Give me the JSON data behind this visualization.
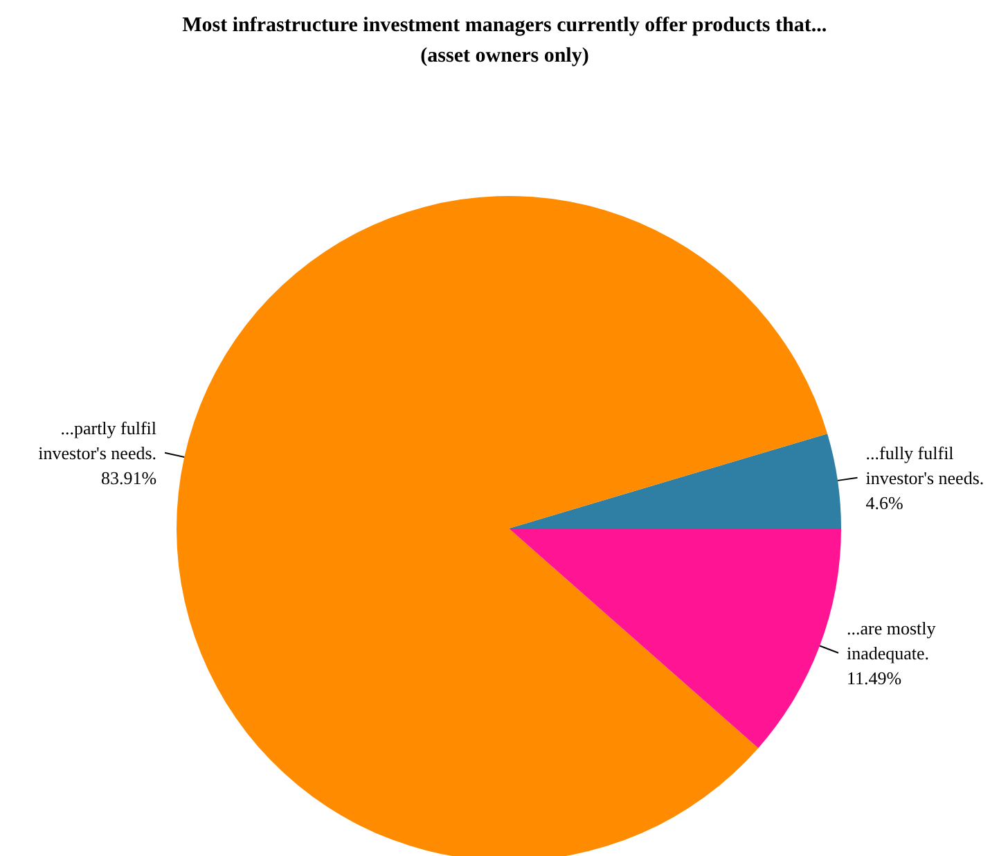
{
  "chart_data": {
    "type": "pie",
    "title": "Most infrastructure investment managers currently offer products that...",
    "subtitle": "(asset owners only)",
    "categories": [
      "...fully fulfil investor's needs.",
      "...partly fulfil investor's needs.",
      "...are mostly inadequate."
    ],
    "values": [
      4.6,
      83.91,
      11.49
    ],
    "colors": [
      "#2f7fa5",
      "#ff8c00",
      "#ff1493"
    ],
    "value_labels": [
      "4.6%",
      "83.91%",
      "11.49%"
    ]
  }
}
